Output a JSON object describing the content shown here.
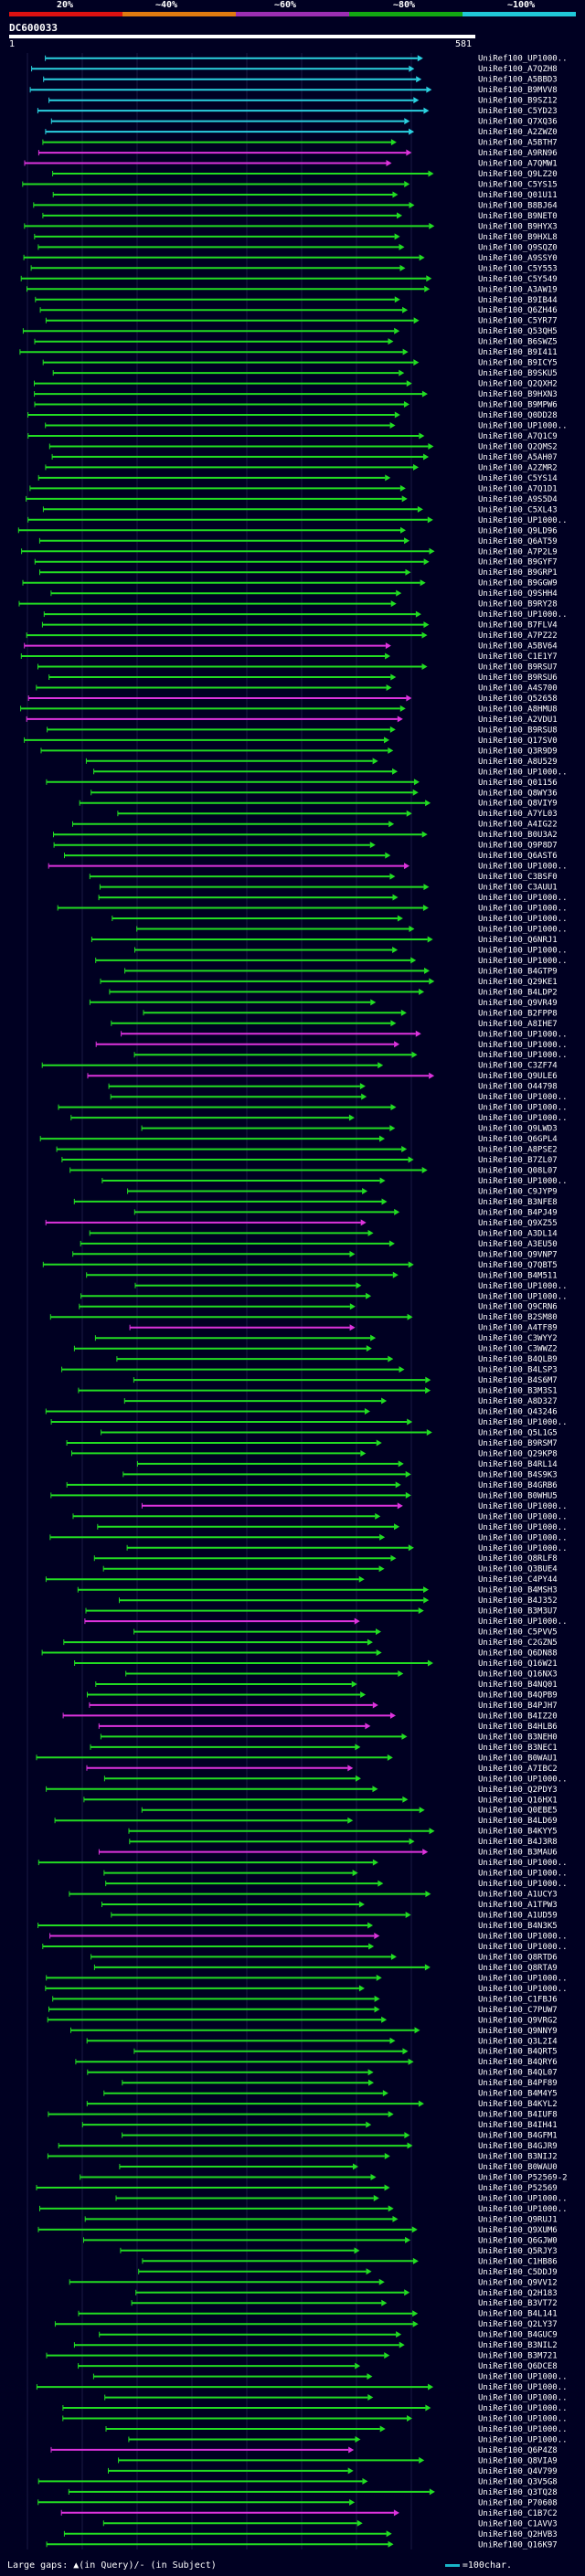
{
  "scale": {
    "labels": [
      "20%",
      "~40%",
      "~60%",
      "~80%",
      "~100%"
    ],
    "colors": [
      "#dd1111",
      "#e07a10",
      "#9b2fb3",
      "#12a812",
      "#20c8d8"
    ]
  },
  "query": {
    "id": "DC600033",
    "start": "1",
    "end": "581"
  },
  "legend": {
    "gaps_text": "Large gaps: ▲(in Query)/- (in Subject)",
    "scale_text": "=100char."
  },
  "colors": {
    "cyan": "#2ad1e0",
    "green": "#22dd22",
    "magenta": "#dd33dd",
    "background": "#000022"
  },
  "hits": [
    {
      "label": "UniRef100_UP1000..",
      "color": "cyan"
    },
    {
      "label": "UniRef100_A7QZH8",
      "color": "cyan"
    },
    {
      "label": "UniRef100_A5BBD3",
      "color": "cyan"
    },
    {
      "label": "UniRef100_B9MVV8",
      "color": "cyan"
    },
    {
      "label": "UniRef100_B9SZ12",
      "color": "cyan"
    },
    {
      "label": "UniRef100_C5YD23",
      "color": "cyan"
    },
    {
      "label": "UniRef100_Q7XQ36",
      "color": "cyan"
    },
    {
      "label": "UniRef100_A2ZWZ0",
      "color": "cyan"
    },
    {
      "label": "UniRef100_A5BTH7",
      "color": "green"
    },
    {
      "label": "UniRef100_A9RN96",
      "color": "magenta"
    },
    {
      "label": "UniRef100_A7QMW1",
      "color": "magenta"
    },
    {
      "label": "UniRef100_Q9LZ20",
      "color": "green"
    },
    {
      "label": "UniRef100_C5YS15",
      "color": "green"
    },
    {
      "label": "UniRef100_Q01U11",
      "color": "green"
    },
    {
      "label": "UniRef100_B8BJ64",
      "color": "green"
    },
    {
      "label": "UniRef100_B9NET0",
      "color": "green"
    },
    {
      "label": "UniRef100_B9HYX3",
      "color": "green"
    },
    {
      "label": "UniRef100_B9HXL8",
      "color": "green"
    },
    {
      "label": "UniRef100_Q9SQZ0",
      "color": "green"
    },
    {
      "label": "UniRef100_A9SSY0",
      "color": "green"
    },
    {
      "label": "UniRef100_C5Y553",
      "color": "green"
    },
    {
      "label": "UniRef100_C5Y549",
      "color": "green"
    },
    {
      "label": "UniRef100_A3AW19",
      "color": "green"
    },
    {
      "label": "UniRef100_B9IB44",
      "color": "green"
    },
    {
      "label": "UniRef100_Q6ZH46",
      "color": "green"
    },
    {
      "label": "UniRef100_C5YR77",
      "color": "green"
    },
    {
      "label": "UniRef100_Q53QH5",
      "color": "green"
    },
    {
      "label": "UniRef100_B6SWZ5",
      "color": "green"
    },
    {
      "label": "UniRef100_B9I411",
      "color": "green"
    },
    {
      "label": "UniRef100_B9ICY5",
      "color": "green"
    },
    {
      "label": "UniRef100_B9SKU5",
      "color": "green"
    },
    {
      "label": "UniRef100_Q2QXH2",
      "color": "green"
    },
    {
      "label": "UniRef100_B9HXN3",
      "color": "green"
    },
    {
      "label": "UniRef100_B9MPW6",
      "color": "green"
    },
    {
      "label": "UniRef100_Q0DD28",
      "color": "green"
    },
    {
      "label": "UniRef100_UP1000..",
      "color": "green"
    },
    {
      "label": "UniRef100_A7Q1C9",
      "color": "green"
    },
    {
      "label": "UniRef100_Q2QMS2",
      "color": "green"
    },
    {
      "label": "UniRef100_A5AH07",
      "color": "green"
    },
    {
      "label": "UniRef100_A2ZMR2",
      "color": "green"
    },
    {
      "label": "UniRef100_C5YS14",
      "color": "green"
    },
    {
      "label": "UniRef100_A7Q1D1",
      "color": "green"
    },
    {
      "label": "UniRef100_A9S5D4",
      "color": "green"
    },
    {
      "label": "UniRef100_C5XL43",
      "color": "green"
    },
    {
      "label": "UniRef100_UP1000..",
      "color": "green"
    },
    {
      "label": "UniRef100_Q9LD96",
      "color": "green"
    },
    {
      "label": "UniRef100_Q6AT59",
      "color": "green"
    },
    {
      "label": "UniRef100_A7P2L9",
      "color": "green"
    },
    {
      "label": "UniRef100_B9GYF7",
      "color": "green"
    },
    {
      "label": "UniRef100_B9GRP1",
      "color": "green"
    },
    {
      "label": "UniRef100_B9GGW9",
      "color": "green"
    },
    {
      "label": "UniRef100_Q9SHH4",
      "color": "green"
    },
    {
      "label": "UniRef100_B9RY28",
      "color": "green"
    },
    {
      "label": "UniRef100_UP1000..",
      "color": "green"
    },
    {
      "label": "UniRef100_B7FLV4",
      "color": "green"
    },
    {
      "label": "UniRef100_A7PZ22",
      "color": "green"
    },
    {
      "label": "UniRef100_A5BV64",
      "color": "magenta"
    },
    {
      "label": "UniRef100_C1E1Y7",
      "color": "green"
    },
    {
      "label": "UniRef100_B9RSU7",
      "color": "green"
    },
    {
      "label": "UniRef100_B9RSU6",
      "color": "green"
    },
    {
      "label": "UniRef100_A4S700",
      "color": "green"
    },
    {
      "label": "UniRef100_Q52658",
      "color": "magenta"
    },
    {
      "label": "UniRef100_A8HMU8",
      "color": "green"
    },
    {
      "label": "UniRef100_A2VDU1",
      "color": "magenta"
    },
    {
      "label": "UniRef100_B9RSU8",
      "color": "green"
    },
    {
      "label": "UniRef100_Q17SV0",
      "color": "green"
    },
    {
      "label": "UniRef100_Q3R9D9",
      "color": "green"
    },
    {
      "label": "UniRef100_A8U529",
      "color": "green"
    },
    {
      "label": "UniRef100_UP1000..",
      "color": "green"
    },
    {
      "label": "UniRef100_Q01156",
      "color": "green"
    },
    {
      "label": "UniRef100_Q8WY36",
      "color": "green"
    },
    {
      "label": "UniRef100_Q8VIY9",
      "color": "green"
    },
    {
      "label": "UniRef100_A7YL03",
      "color": "green"
    },
    {
      "label": "UniRef100_A4IG22",
      "color": "green"
    },
    {
      "label": "UniRef100_B0U3A2",
      "color": "green"
    },
    {
      "label": "UniRef100_Q9P8D7",
      "color": "green"
    },
    {
      "label": "UniRef100_Q6AST6",
      "color": "green"
    },
    {
      "label": "UniRef100_UP1000..",
      "color": "magenta"
    },
    {
      "label": "UniRef100_C3BSF0",
      "color": "green"
    },
    {
      "label": "UniRef100_C3AUU1",
      "color": "green"
    },
    {
      "label": "UniRef100_UP1000..",
      "color": "green"
    },
    {
      "label": "UniRef100_UP1000..",
      "color": "green"
    },
    {
      "label": "UniRef100_UP1000..",
      "color": "green"
    },
    {
      "label": "UniRef100_UP1000..",
      "color": "green"
    },
    {
      "label": "UniRef100_Q6NRJ1",
      "color": "green"
    },
    {
      "label": "UniRef100_UP1000..",
      "color": "green"
    },
    {
      "label": "UniRef100_UP1000..",
      "color": "green"
    },
    {
      "label": "UniRef100_B4GTP9",
      "color": "green"
    },
    {
      "label": "UniRef100_Q29KE1",
      "color": "green"
    },
    {
      "label": "UniRef100_B4LDP2",
      "color": "green"
    },
    {
      "label": "UniRef100_Q9VR49",
      "color": "green"
    },
    {
      "label": "UniRef100_B2FPP8",
      "color": "green"
    },
    {
      "label": "UniRef100_A8IHE7",
      "color": "green"
    },
    {
      "label": "UniRef100_UP1000..",
      "color": "magenta"
    },
    {
      "label": "UniRef100_UP1000..",
      "color": "magenta"
    },
    {
      "label": "UniRef100_UP1000..",
      "color": "green"
    },
    {
      "label": "UniRef100_C3ZF74",
      "color": "green"
    },
    {
      "label": "UniRef100_Q9ULE6",
      "color": "magenta"
    },
    {
      "label": "UniRef100_O44798",
      "color": "green"
    },
    {
      "label": "UniRef100_UP1000..",
      "color": "green"
    },
    {
      "label": "UniRef100_UP1000..",
      "color": "green"
    },
    {
      "label": "UniRef100_UP1000..",
      "color": "green"
    },
    {
      "label": "UniRef100_Q9LWD3",
      "color": "green"
    },
    {
      "label": "UniRef100_Q6GPL4",
      "color": "green"
    },
    {
      "label": "UniRef100_A8PSE2",
      "color": "green"
    },
    {
      "label": "UniRef100_B7ZL07",
      "color": "green"
    },
    {
      "label": "UniRef100_Q08L07",
      "color": "green"
    },
    {
      "label": "UniRef100_UP1000..",
      "color": "green"
    },
    {
      "label": "UniRef100_C9JYP9",
      "color": "green"
    },
    {
      "label": "UniRef100_B3NFE8",
      "color": "green"
    },
    {
      "label": "UniRef100_B4PJ49",
      "color": "green"
    },
    {
      "label": "UniRef100_Q9XZ55",
      "color": "magenta"
    },
    {
      "label": "UniRef100_A3DL14",
      "color": "green"
    },
    {
      "label": "UniRef100_A3EU50",
      "color": "green"
    },
    {
      "label": "UniRef100_Q9VNP7",
      "color": "green"
    },
    {
      "label": "UniRef100_Q7QBT5",
      "color": "green"
    },
    {
      "label": "UniRef100_B4M511",
      "color": "green"
    },
    {
      "label": "UniRef100_UP1000..",
      "color": "green"
    },
    {
      "label": "UniRef100_UP1000..",
      "color": "green"
    },
    {
      "label": "UniRef100_Q9CRN6",
      "color": "green"
    },
    {
      "label": "UniRef100_B2SM80",
      "color": "green"
    },
    {
      "label": "UniRef100_A4TF89",
      "color": "magenta"
    },
    {
      "label": "UniRef100_C3WYY2",
      "color": "green"
    },
    {
      "label": "UniRef100_C3WWZ2",
      "color": "green"
    },
    {
      "label": "UniRef100_B4QLB9",
      "color": "green"
    },
    {
      "label": "UniRef100_B4LSP3",
      "color": "green"
    },
    {
      "label": "UniRef100_B4S6M7",
      "color": "green"
    },
    {
      "label": "UniRef100_B3M3S1",
      "color": "green"
    },
    {
      "label": "UniRef100_A8D327",
      "color": "green"
    },
    {
      "label": "UniRef100_Q43246",
      "color": "green"
    },
    {
      "label": "UniRef100_UP1000..",
      "color": "green"
    },
    {
      "label": "UniRef100_Q5L1G5",
      "color": "green"
    },
    {
      "label": "UniRef100_B9RSM7",
      "color": "green"
    },
    {
      "label": "UniRef100_Q29KP8",
      "color": "green"
    },
    {
      "label": "UniRef100_B4RL14",
      "color": "green"
    },
    {
      "label": "UniRef100_B4S9K3",
      "color": "green"
    },
    {
      "label": "UniRef100_B4GRB6",
      "color": "green"
    },
    {
      "label": "UniRef100_B0WHU5",
      "color": "green"
    },
    {
      "label": "UniRef100_UP1000..",
      "color": "magenta"
    },
    {
      "label": "UniRef100_UP1000..",
      "color": "green"
    },
    {
      "label": "UniRef100_UP1000..",
      "color": "green"
    },
    {
      "label": "UniRef100_UP1000..",
      "color": "green"
    },
    {
      "label": "UniRef100_UP1000..",
      "color": "green"
    },
    {
      "label": "UniRef100_Q8RLF8",
      "color": "green"
    },
    {
      "label": "UniRef100_Q3BUE4",
      "color": "green"
    },
    {
      "label": "UniRef100_C4PY44",
      "color": "green"
    },
    {
      "label": "UniRef100_B4MSH3",
      "color": "green"
    },
    {
      "label": "UniRef100_B4J352",
      "color": "green"
    },
    {
      "label": "UniRef100_B3M3U7",
      "color": "green"
    },
    {
      "label": "UniRef100_UP1000..",
      "color": "magenta"
    },
    {
      "label": "UniRef100_C5PVV5",
      "color": "green"
    },
    {
      "label": "UniRef100_C2GZN5",
      "color": "green"
    },
    {
      "label": "UniRef100_Q6DN88",
      "color": "green"
    },
    {
      "label": "UniRef100_Q16W21",
      "color": "green"
    },
    {
      "label": "UniRef100_Q16NX3",
      "color": "green"
    },
    {
      "label": "UniRef100_B4NQ01",
      "color": "green"
    },
    {
      "label": "UniRef100_B4QPB9",
      "color": "green"
    },
    {
      "label": "UniRef100_B4PJH7",
      "color": "magenta"
    },
    {
      "label": "UniRef100_B4IZ20",
      "color": "magenta"
    },
    {
      "label": "UniRef100_B4HLB6",
      "color": "magenta"
    },
    {
      "label": "UniRef100_B3NEH0",
      "color": "green"
    },
    {
      "label": "UniRef100_B3NEC1",
      "color": "green"
    },
    {
      "label": "UniRef100_B0WAU1",
      "color": "green"
    },
    {
      "label": "UniRef100_A7IBC2",
      "color": "magenta"
    },
    {
      "label": "UniRef100_UP1000..",
      "color": "green"
    },
    {
      "label": "UniRef100_Q2PDY3",
      "color": "green"
    },
    {
      "label": "UniRef100_Q16HX1",
      "color": "green"
    },
    {
      "label": "UniRef100_Q0EBE5",
      "color": "green"
    },
    {
      "label": "UniRef100_B4LD69",
      "color": "green"
    },
    {
      "label": "UniRef100_B4KYY5",
      "color": "green"
    },
    {
      "label": "UniRef100_B4J3R8",
      "color": "green"
    },
    {
      "label": "UniRef100_B3MAU6",
      "color": "magenta"
    },
    {
      "label": "UniRef100_UP1000..",
      "color": "green"
    },
    {
      "label": "UniRef100_UP1000..",
      "color": "green"
    },
    {
      "label": "UniRef100_UP1000..",
      "color": "green"
    },
    {
      "label": "UniRef100_A1UCY3",
      "color": "green"
    },
    {
      "label": "UniRef100_A1TPW3",
      "color": "green"
    },
    {
      "label": "UniRef100_A1UD59",
      "color": "green"
    },
    {
      "label": "UniRef100_B4N3K5",
      "color": "green"
    },
    {
      "label": "UniRef100_UP1000..",
      "color": "magenta"
    },
    {
      "label": "UniRef100_UP1000..",
      "color": "green"
    },
    {
      "label": "UniRef100_Q8RTD6",
      "color": "green"
    },
    {
      "label": "UniRef100_Q8RTA9",
      "color": "green"
    },
    {
      "label": "UniRef100_UP1000..",
      "color": "green"
    },
    {
      "label": "UniRef100_UP1000..",
      "color": "green"
    },
    {
      "label": "UniRef100_C1FBJ6",
      "color": "green"
    },
    {
      "label": "UniRef100_C7PUW7",
      "color": "green"
    },
    {
      "label": "UniRef100_Q9VRG2",
      "color": "green"
    },
    {
      "label": "UniRef100_Q9NNY9",
      "color": "green"
    },
    {
      "label": "UniRef100_Q3L2I4",
      "color": "green"
    },
    {
      "label": "UniRef100_B4QRT5",
      "color": "green"
    },
    {
      "label": "UniRef100_B4QRY6",
      "color": "green"
    },
    {
      "label": "UniRef100_B4QL07",
      "color": "green"
    },
    {
      "label": "UniRef100_B4PF89",
      "color": "green"
    },
    {
      "label": "UniRef100_B4M4Y5",
      "color": "green"
    },
    {
      "label": "UniRef100_B4KYL2",
      "color": "green"
    },
    {
      "label": "UniRef100_B4IUF8",
      "color": "green"
    },
    {
      "label": "UniRef100_B4IH41",
      "color": "green"
    },
    {
      "label": "UniRef100_B4GFM1",
      "color": "green"
    },
    {
      "label": "UniRef100_B4GJR9",
      "color": "green"
    },
    {
      "label": "UniRef100_B3NIJ2",
      "color": "green"
    },
    {
      "label": "UniRef100_B0WAU0",
      "color": "green"
    },
    {
      "label": "UniRef100_P52569-2",
      "color": "green"
    },
    {
      "label": "UniRef100_P52569",
      "color": "green"
    },
    {
      "label": "UniRef100_UP1000..",
      "color": "green"
    },
    {
      "label": "UniRef100_UP1000..",
      "color": "green"
    },
    {
      "label": "UniRef100_Q9RUJ1",
      "color": "green"
    },
    {
      "label": "UniRef100_Q9XUM6",
      "color": "green"
    },
    {
      "label": "UniRef100_Q6GJW0",
      "color": "green"
    },
    {
      "label": "UniRef100_Q5RJY3",
      "color": "green"
    },
    {
      "label": "UniRef100_C1HB86",
      "color": "green"
    },
    {
      "label": "UniRef100_C5DDJ9",
      "color": "green"
    },
    {
      "label": "UniRef100_Q9VV12",
      "color": "green"
    },
    {
      "label": "UniRef100_Q2H183",
      "color": "green"
    },
    {
      "label": "UniRef100_B3VT72",
      "color": "green"
    },
    {
      "label": "UniRef100_B4L141",
      "color": "green"
    },
    {
      "label": "UniRef100_Q2LY37",
      "color": "green"
    },
    {
      "label": "UniRef100_B4GUC9",
      "color": "green"
    },
    {
      "label": "UniRef100_B3NIL2",
      "color": "green"
    },
    {
      "label": "UniRef100_B3M721",
      "color": "green"
    },
    {
      "label": "UniRef100_Q6DCE8",
      "color": "green"
    },
    {
      "label": "UniRef100_UP1000..",
      "color": "green"
    },
    {
      "label": "UniRef100_UP1000..",
      "color": "green"
    },
    {
      "label": "UniRef100_UP1000..",
      "color": "green"
    },
    {
      "label": "UniRef100_UP1000..",
      "color": "green"
    },
    {
      "label": "UniRef100_UP1000..",
      "color": "green"
    },
    {
      "label": "UniRef100_UP1000..",
      "color": "green"
    },
    {
      "label": "UniRef100_UP1000..",
      "color": "green"
    },
    {
      "label": "UniRef100_Q6P4Z8",
      "color": "magenta"
    },
    {
      "label": "UniRef100_Q8VIA9",
      "color": "green"
    },
    {
      "label": "UniRef100_Q4V799",
      "color": "green"
    },
    {
      "label": "UniRef100_Q3V5G8",
      "color": "green"
    },
    {
      "label": "UniRef100_Q3TQ28",
      "color": "green"
    },
    {
      "label": "UniRef100_P70608",
      "color": "green"
    },
    {
      "label": "UniRef100_C1B7C2",
      "color": "magenta"
    },
    {
      "label": "UniRef100_C1AVV3",
      "color": "green"
    },
    {
      "label": "UniRef100_Q2HVB3",
      "color": "green"
    },
    {
      "label": "UniRef100_Q16K97",
      "color": "green"
    }
  ]
}
